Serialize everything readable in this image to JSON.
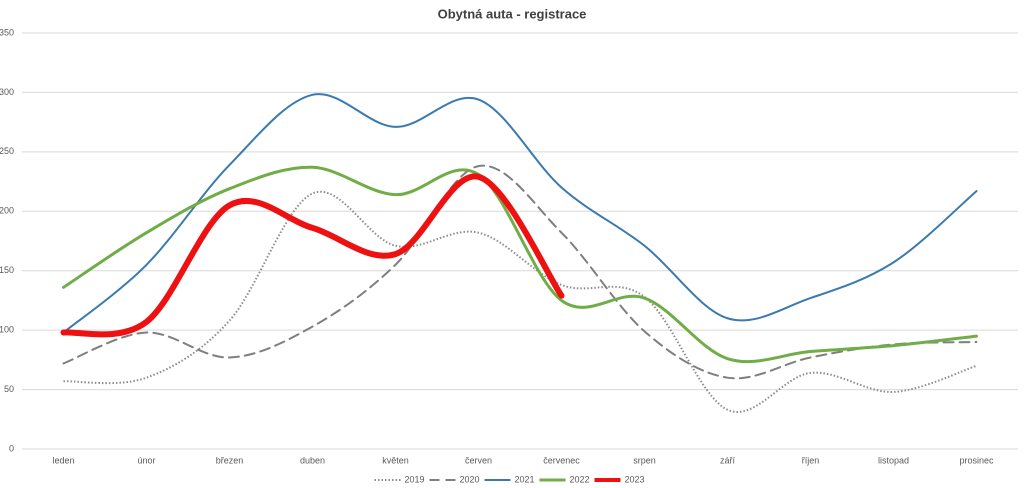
{
  "chart_data": {
    "type": "line",
    "title": "Obytná auta - registrace",
    "categories": [
      "leden",
      "únor",
      "březen",
      "duben",
      "květen",
      "červen",
      "červenec",
      "srpen",
      "září",
      "říjen",
      "listopad",
      "prosinec"
    ],
    "series": [
      {
        "name": "2019",
        "color": "#8c8c8c",
        "dash": "dotted",
        "width": 2,
        "values": [
          57,
          60,
          108,
          215,
          171,
          182,
          138,
          128,
          33,
          64,
          48,
          70
        ]
      },
      {
        "name": "2020",
        "color": "#7f7f7f",
        "dash": "dashed",
        "width": 2,
        "values": [
          72,
          98,
          77,
          103,
          155,
          238,
          182,
          99,
          60,
          77,
          88,
          90
        ]
      },
      {
        "name": "2021",
        "color": "#3a7ab0",
        "dash": "solid",
        "width": 2,
        "values": [
          98,
          155,
          239,
          298,
          271,
          294,
          220,
          171,
          110,
          127,
          157,
          217
        ]
      },
      {
        "name": "2022",
        "color": "#70ad47",
        "dash": "solid",
        "width": 3,
        "values": [
          136,
          182,
          219,
          237,
          214,
          231,
          125,
          127,
          76,
          82,
          87,
          95
        ]
      },
      {
        "name": "2023",
        "color": "#ee1111",
        "dash": "solid",
        "width": 6,
        "values": [
          98,
          107,
          205,
          186,
          164,
          229,
          129,
          null,
          null,
          null,
          null,
          null
        ]
      }
    ],
    "ylim": [
      0,
      350
    ],
    "yticks": [
      0,
      50,
      100,
      150,
      200,
      250,
      300,
      350
    ],
    "grid": true,
    "smooth": true,
    "legend": "bottom"
  }
}
